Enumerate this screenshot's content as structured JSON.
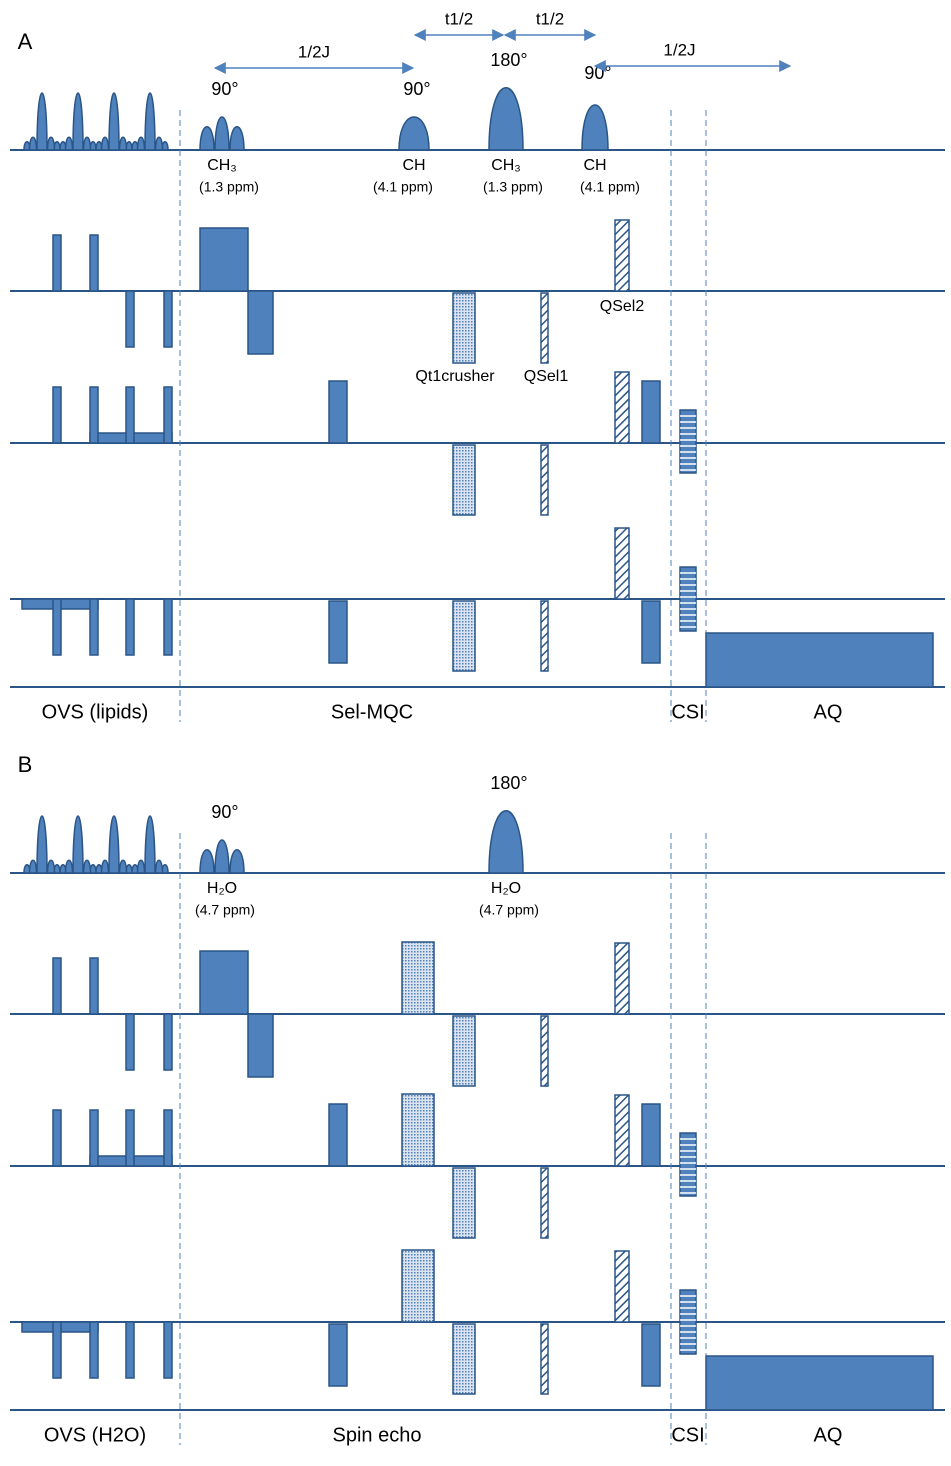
{
  "panels": [
    {
      "label": "A",
      "intervals": [
        "1/2J",
        "t1/2",
        "t1/2",
        "1/2J"
      ],
      "pulses": [
        {
          "flip": "90°",
          "nucleus": "CH₃",
          "shift": "(1.3 ppm)"
        },
        {
          "flip": "90°",
          "nucleus": "CH",
          "shift": "(4.1 ppm)"
        },
        {
          "flip": "180°",
          "nucleus": "CH₃",
          "shift": "(1.3 ppm)"
        },
        {
          "flip": "90°",
          "nucleus": "CH",
          "shift": "(4.1 ppm)"
        }
      ],
      "gradient_labels": [
        "QSel2",
        "Qt1crusher",
        "QSel1"
      ],
      "sections": [
        "OVS (lipids)",
        "Sel-MQC",
        "CSI",
        "AQ"
      ]
    },
    {
      "label": "B",
      "pulses": [
        {
          "flip": "90°",
          "nucleus": "H₂O",
          "shift": "(4.7 ppm)"
        },
        {
          "flip": "180°",
          "nucleus": "H₂O",
          "shift": "(4.7 ppm)"
        }
      ],
      "sections": [
        "OVS (H2O)",
        "Spin echo",
        "CSI",
        "AQ"
      ]
    }
  ]
}
